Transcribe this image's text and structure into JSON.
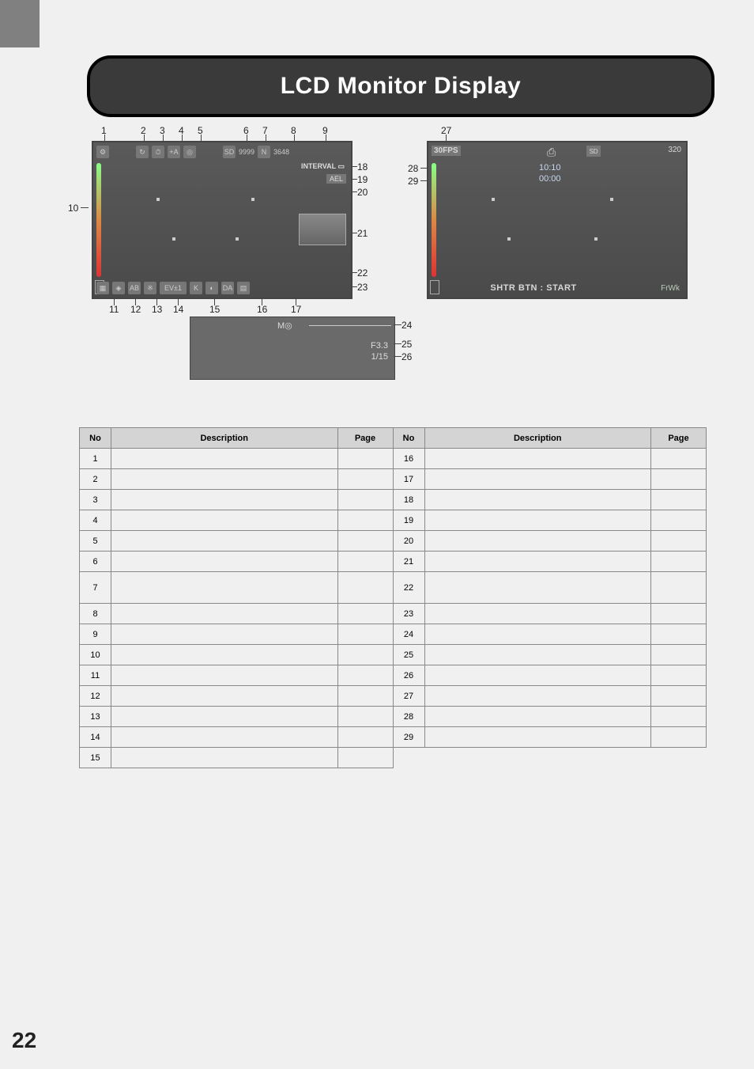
{
  "page": {
    "title": "LCD Monitor Display",
    "number": "22"
  },
  "callouts": {
    "left_lcd_top": [
      "1",
      "2",
      "3",
      "4",
      "5",
      "6",
      "7",
      "8",
      "9"
    ],
    "left_lcd_right": [
      "18",
      "19",
      "20",
      "21",
      "22",
      "23"
    ],
    "left_lcd_left": [
      "10"
    ],
    "left_lcd_bottom": [
      "11",
      "12",
      "13",
      "14",
      "15",
      "16",
      "17"
    ],
    "right_lcd_top": [
      "27"
    ],
    "right_lcd_left": [
      "28",
      "29"
    ],
    "inset_right": [
      "24",
      "25",
      "26"
    ]
  },
  "left_lcd": {
    "top_icons": [
      "⚙",
      "↻",
      "⏱",
      "+A",
      "◎",
      "SD",
      "9999",
      "N",
      "3648"
    ],
    "interval_label": "INTERVAL",
    "ael_label": "AEL",
    "bottom_icons": [
      "▦",
      "◈",
      "AB",
      "※",
      "EV±1",
      "K",
      "◐",
      "DA",
      "▤"
    ]
  },
  "right_lcd": {
    "fps": "30FPS",
    "sd": "SD",
    "res": "320",
    "time1": "10:10",
    "time2": "00:00",
    "start_label": "SHTR BTN : START",
    "fwk_label": "FrWk"
  },
  "inset": {
    "mode": "M◎",
    "aperture": "F3.3",
    "shutter": "1/15"
  },
  "ref_table": {
    "headers": [
      "No",
      "Description",
      "Page",
      "No",
      "Description",
      "Page"
    ],
    "rows": [
      [
        "1",
        "",
        "",
        "16",
        "",
        ""
      ],
      [
        "2",
        "",
        "",
        "17",
        "",
        ""
      ],
      [
        "3",
        "",
        "",
        "18",
        "",
        ""
      ],
      [
        "4",
        "",
        "",
        "19",
        "",
        ""
      ],
      [
        "5",
        "",
        "",
        "20",
        "",
        ""
      ],
      [
        "6",
        "",
        "",
        "21",
        "",
        ""
      ],
      [
        "7",
        "",
        "",
        "22",
        "",
        ""
      ],
      [
        "8",
        "",
        "",
        "23",
        "",
        ""
      ],
      [
        "9",
        "",
        "",
        "24",
        "",
        ""
      ],
      [
        "10",
        "",
        "",
        "25",
        "",
        ""
      ],
      [
        "11",
        "",
        "",
        "26",
        "",
        ""
      ],
      [
        "12",
        "",
        "",
        "27",
        "",
        ""
      ],
      [
        "13",
        "",
        "",
        "28",
        "",
        ""
      ],
      [
        "14",
        "",
        "",
        "29",
        "",
        ""
      ],
      [
        "15",
        "",
        "",
        "",
        "",
        ""
      ]
    ]
  }
}
